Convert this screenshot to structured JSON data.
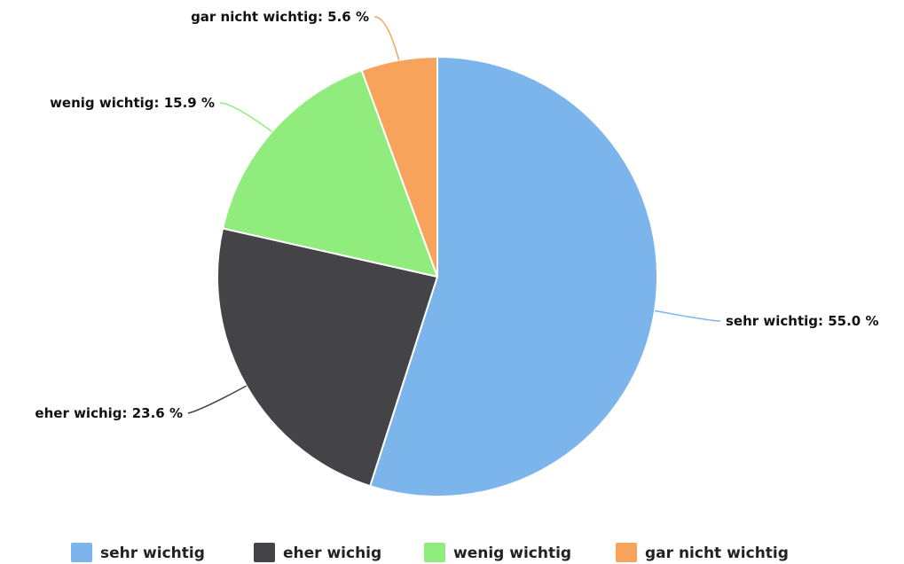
{
  "chart_data": {
    "type": "pie",
    "title": "",
    "categories": [
      "sehr wichtig",
      "eher wichig",
      "wenig wichtig",
      "gar nicht wichtig"
    ],
    "values": [
      55.0,
      23.6,
      15.9,
      5.6
    ],
    "colors": [
      "#7cb5ec",
      "#434348",
      "#90ed7d",
      "#f7a35c"
    ],
    "data_labels": [
      "sehr wichtig: 55.0 %",
      "eher wichig: 23.6 %",
      "wenig wichtig: 15.9 %",
      "gar nicht wichtig: 5.6 %"
    ],
    "legend": {
      "position": "bottom",
      "items": [
        "sehr wichtig",
        "eher wichig",
        "wenig wichtig",
        "gar nicht wichtig"
      ]
    }
  }
}
